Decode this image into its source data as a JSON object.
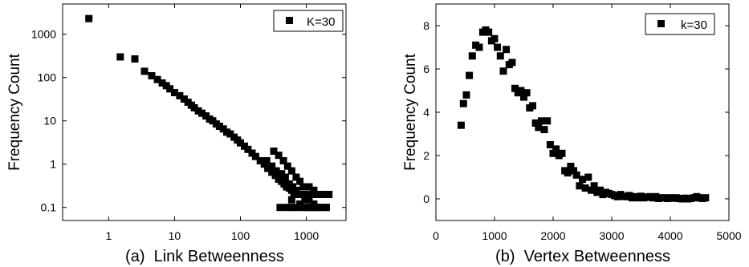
{
  "chart_data": [
    {
      "type": "scatter",
      "caption": "(a)  Link Betweenness",
      "xlabel": "",
      "ylabel": "Frequency Count",
      "xscale": "log",
      "yscale": "log",
      "xlim": [
        0.2,
        4000
      ],
      "ylim": [
        0.05,
        5000
      ],
      "xticks": [
        1,
        10,
        100,
        1000
      ],
      "xtick_labels": [
        "1",
        "10",
        "100",
        "1000"
      ],
      "yticks": [
        0.1,
        1,
        10,
        100,
        1000
      ],
      "ytick_labels": [
        "0.1",
        "1",
        "10",
        "100",
        "1000"
      ],
      "legend": {
        "label": "K=30",
        "position": "top-right"
      },
      "marker": "square",
      "color": "#000000",
      "series": [
        {
          "name": "K=30",
          "x": [
            0.5,
            1.5,
            2.5,
            3.5,
            4.5,
            5.5,
            6.5,
            7.5,
            8.5,
            10,
            12,
            14,
            16,
            18,
            20,
            23,
            26,
            30,
            34,
            38,
            43,
            48,
            55,
            62,
            70,
            80,
            90,
            100,
            115,
            130,
            150,
            170,
            200,
            230,
            260,
            300,
            340,
            380,
            420,
            460,
            500,
            550,
            600,
            650,
            700,
            780,
            860,
            950,
            1050,
            1200,
            1350,
            1500,
            1700,
            1900,
            2200,
            320,
            380,
            450,
            520,
            600,
            700,
            800,
            900,
            1000,
            1100,
            1300,
            1500,
            1800,
            2000,
            250,
            300,
            350,
            420,
            480,
            550,
            620,
            700,
            800,
            950,
            1100,
            1300,
            1600,
            400,
            500,
            600,
            700,
            850,
            1000,
            1200,
            1500,
            2000,
            600,
            800,
            1100,
            1400
          ],
          "y": [
            2300,
            300,
            270,
            140,
            110,
            90,
            75,
            65,
            55,
            45,
            38,
            32,
            27,
            23,
            20,
            17,
            15,
            13,
            11,
            10,
            8.5,
            7.5,
            6.5,
            5.5,
            5,
            4.2,
            3.6,
            3.1,
            2.6,
            2.2,
            1.8,
            1.5,
            1.2,
            1,
            0.8,
            0.65,
            0.55,
            0.45,
            0.4,
            0.35,
            0.3,
            0.28,
            0.25,
            0.22,
            0.2,
            0.2,
            0.2,
            0.2,
            0.2,
            0.2,
            0.2,
            0.2,
            0.2,
            0.2,
            0.2,
            2,
            1.6,
            1.2,
            0.9,
            0.7,
            0.5,
            0.4,
            0.3,
            0.3,
            0.3,
            0.25,
            0.2,
            0.2,
            0.1,
            1.2,
            0.9,
            0.7,
            0.6,
            0.5,
            0.35,
            0.3,
            0.25,
            0.2,
            0.15,
            0.15,
            0.12,
            0.1,
            0.1,
            0.1,
            0.1,
            0.1,
            0.1,
            0.1,
            0.1,
            0.1,
            0.1,
            0.15,
            0.12,
            0.1,
            0.1
          ]
        }
      ]
    },
    {
      "type": "scatter",
      "caption": "(b)  Vertex Betweenness",
      "xlabel": "",
      "ylabel": "Frequency Count",
      "xscale": "linear",
      "yscale": "linear",
      "xlim": [
        0,
        5000
      ],
      "ylim": [
        -1,
        9
      ],
      "xticks": [
        0,
        1000,
        2000,
        3000,
        4000,
        5000
      ],
      "xtick_labels": [
        "0",
        "1000",
        "2000",
        "3000",
        "4000",
        "5000"
      ],
      "yticks": [
        0,
        2,
        4,
        6,
        8
      ],
      "ytick_labels": [
        "0",
        "2",
        "4",
        "6",
        "8"
      ],
      "legend": {
        "label": "k=30",
        "position": "top-right"
      },
      "marker": "square",
      "color": "#000000",
      "series": [
        {
          "name": "k=30",
          "x": [
            430,
            470,
            520,
            570,
            620,
            680,
            740,
            800,
            850,
            900,
            950,
            1000,
            1050,
            1100,
            1150,
            1200,
            1250,
            1300,
            1350,
            1400,
            1450,
            1500,
            1550,
            1600,
            1650,
            1700,
            1750,
            1800,
            1850,
            1900,
            1950,
            2000,
            2050,
            2100,
            2150,
            2200,
            2250,
            2300,
            2350,
            2400,
            2450,
            2500,
            2550,
            2600,
            2650,
            2700,
            2750,
            2800,
            2850,
            2900,
            2950,
            3000,
            3050,
            3100,
            3150,
            3200,
            3250,
            3300,
            3350,
            3400,
            3450,
            3500,
            3550,
            3600,
            3650,
            3700,
            3750,
            3800,
            3850,
            3900,
            3950,
            4000,
            4050,
            4100,
            4150,
            4200,
            4250,
            4300,
            4350,
            4400,
            4450,
            4500,
            4550,
            4600
          ],
          "y": [
            3.4,
            4.4,
            4.8,
            5.7,
            6.6,
            7.1,
            7.0,
            7.7,
            7.8,
            7.7,
            7.3,
            7.4,
            7.0,
            6.6,
            5.9,
            6.9,
            6.2,
            6.3,
            5.1,
            4.9,
            5.0,
            4.7,
            4.9,
            4.2,
            4.3,
            3.5,
            3.3,
            3.6,
            3.2,
            3.6,
            2.5,
            2.1,
            2.3,
            2.0,
            2.1,
            1.3,
            1.2,
            1.5,
            1.3,
            1.1,
            0.6,
            0.9,
            0.5,
            1.0,
            0.4,
            0.6,
            0.3,
            0.4,
            0.2,
            0.3,
            0.25,
            0.2,
            0.15,
            0.1,
            0.2,
            0.12,
            0.1,
            0.15,
            0.05,
            0.1,
            0.05,
            0.12,
            0.05,
            0.08,
            0.1,
            0.05,
            0.1,
            0.02,
            0.05,
            0.05,
            0.02,
            0.05,
            0.03,
            0.05,
            0.02,
            0.0,
            0.03,
            0.0,
            0.02,
            0.05,
            0.1,
            0.05,
            0.02,
            0.05
          ]
        }
      ]
    }
  ]
}
